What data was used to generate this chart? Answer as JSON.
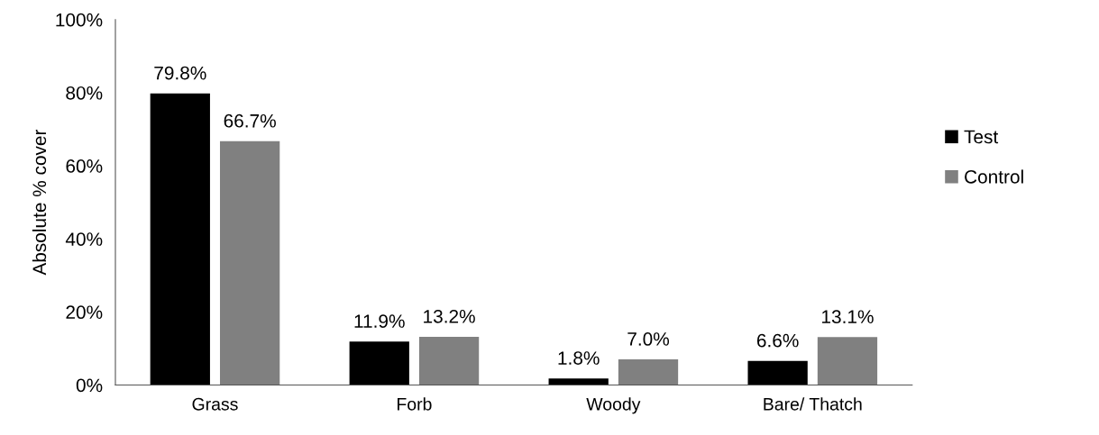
{
  "chart_data": {
    "type": "bar",
    "ylabel": "Absolute % cover",
    "categories": [
      "Grass",
      "Forb",
      "Woody",
      "Bare/ Thatch"
    ],
    "series": [
      {
        "name": "Test",
        "color": "#000000",
        "values": [
          79.8,
          11.9,
          1.8,
          6.6
        ],
        "value_labels": [
          "79.8%",
          "11.9%",
          "1.8%",
          "6.6%"
        ]
      },
      {
        "name": "Control",
        "color": "#808080",
        "values": [
          66.7,
          13.2,
          7.0,
          13.1
        ],
        "value_labels": [
          "66.7%",
          "13.2%",
          "7.0%",
          "13.1%"
        ]
      }
    ],
    "ylim": [
      0,
      100
    ],
    "yticks": [
      {
        "value": 0,
        "label": "0%"
      },
      {
        "value": 20,
        "label": "20%"
      },
      {
        "value": 40,
        "label": "40%"
      },
      {
        "value": 60,
        "label": "60%"
      },
      {
        "value": 80,
        "label": "80%"
      },
      {
        "value": 100,
        "label": "100%"
      }
    ],
    "grid": false,
    "legend": "right"
  }
}
